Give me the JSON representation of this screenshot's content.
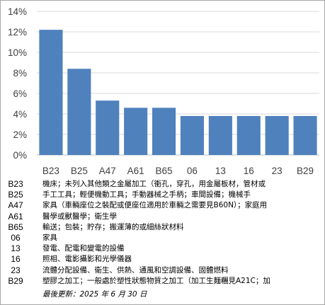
{
  "chart_data": {
    "type": "bar",
    "categories": [
      "B23",
      "B25",
      "A47",
      "A61",
      "B65",
      "06",
      "13",
      "16",
      "23",
      "B29"
    ],
    "values": [
      12.2,
      8.4,
      5.3,
      4.6,
      4.6,
      3.8,
      3.8,
      3.8,
      3.8,
      3.8
    ],
    "ylim": [
      0,
      14
    ],
    "yticks": [
      "0%",
      "2%",
      "4%",
      "6%",
      "8%",
      "10%",
      "12%",
      "14%"
    ],
    "grid": true,
    "bar_color": "#4f81bd",
    "grid_color": "#d9d9d9"
  },
  "legend": [
    {
      "code": "B23",
      "desc": "機床；未列入其他類之金屬加工（衝孔，穿孔，用金屬板材，管材或"
    },
    {
      "code": "B25",
      "desc": "手工工具；輕便機動工具；手動器械之手柄；車間設備；機械手"
    },
    {
      "code": "A47",
      "desc": "家具（車輛座位之裝配或便座位適用於車輛之需要見B60N）；家庭用"
    },
    {
      "code": "A61",
      "desc": "醫學或獸醫學；衛生學"
    },
    {
      "code": "B65",
      "desc": "輸送；包裝；貯存；搬運薄的或細絲狀材料"
    },
    {
      "code": "06",
      "desc": "家具"
    },
    {
      "code": "13",
      "desc": "發電、配電和變電的設備"
    },
    {
      "code": "16",
      "desc": "照相、電影攝影和光學儀器"
    },
    {
      "code": "23",
      "desc": "流體分配設備、衛生、供熱、通風和空調設備、固體燃料"
    },
    {
      "code": "B29",
      "desc": "塑膠之加工；一般處於塑性狀態物質之加工（加工生麵糰見A21C；加"
    }
  ],
  "footnote": "最後更新：2025 年 6 月 30 日"
}
